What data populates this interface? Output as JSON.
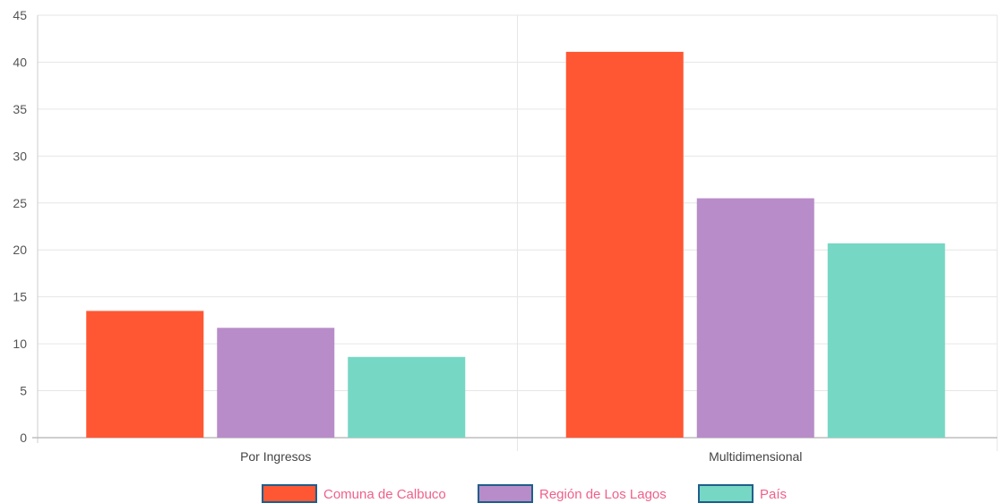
{
  "chart_data": {
    "type": "bar",
    "categories": [
      "Por Ingresos",
      "Multidimensional"
    ],
    "series": [
      {
        "name": "Comuna de Calbuco",
        "color": "#ff5733",
        "values": [
          13.5,
          41.1
        ]
      },
      {
        "name": "Región de Los Lagos",
        "color": "#b88cc9",
        "values": [
          11.7,
          25.5
        ]
      },
      {
        "name": "País",
        "color": "#76d7c4",
        "values": [
          8.6,
          20.7
        ]
      }
    ],
    "title": "",
    "xlabel": "",
    "ylabel": "",
    "ylim": [
      0,
      45
    ],
    "yticks": [
      0,
      5,
      10,
      15,
      20,
      25,
      30,
      35,
      40,
      45
    ],
    "grid": true,
    "legend_position": "bottom",
    "legend_text_color": "#f0608a",
    "legend_border_color": "#1f5f8b"
  }
}
